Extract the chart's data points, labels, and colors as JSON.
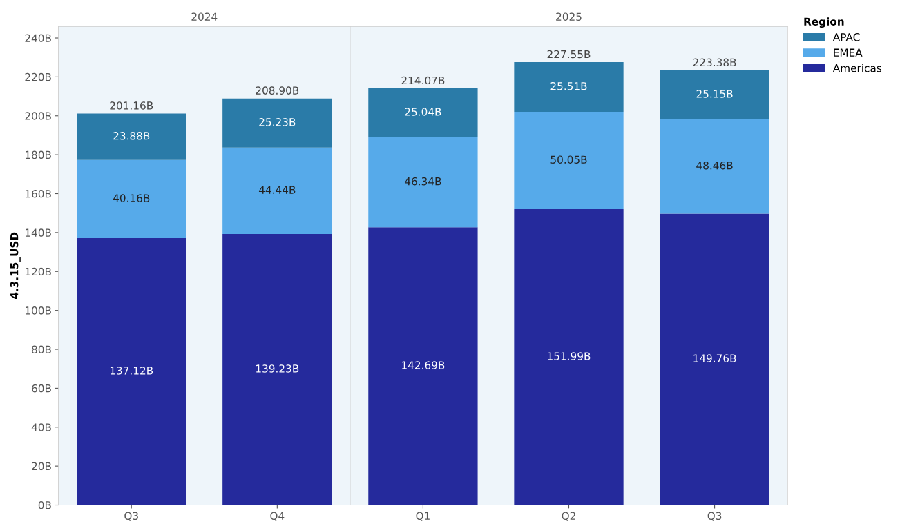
{
  "chart_data": [
    {
      "type": "bar",
      "title": "2024",
      "ylabel": "4.3.15_USD",
      "categories": [
        "Q3",
        "Q4"
      ],
      "stacked": true,
      "ylim": [
        0,
        246
      ],
      "legend": "right",
      "legend_title": "Region",
      "yticks": [
        {
          "value": 0,
          "label": "0B"
        },
        {
          "value": 20,
          "label": "20B"
        },
        {
          "value": 40,
          "label": "40B"
        },
        {
          "value": 60,
          "label": "60B"
        },
        {
          "value": 80,
          "label": "80B"
        },
        {
          "value": 100,
          "label": "100B"
        },
        {
          "value": 120,
          "label": "120B"
        },
        {
          "value": 140,
          "label": "140B"
        },
        {
          "value": 160,
          "label": "160B"
        },
        {
          "value": 180,
          "label": "180B"
        },
        {
          "value": 200,
          "label": "200B"
        },
        {
          "value": 220,
          "label": "220B"
        },
        {
          "value": 240,
          "label": "240B"
        }
      ],
      "series": [
        {
          "name": "Americas",
          "color": "#252a9c",
          "values": [
            137.12,
            139.23
          ],
          "value_labels": [
            "137.12B",
            "139.23B"
          ]
        },
        {
          "name": "EMEA",
          "color": "#56aaea",
          "values": [
            40.16,
            44.44
          ],
          "value_labels": [
            "40.16B",
            "44.44B"
          ]
        },
        {
          "name": "APAC",
          "color": "#2a7ba8",
          "values": [
            23.88,
            25.23
          ],
          "value_labels": [
            "23.88B",
            "25.23B"
          ]
        }
      ],
      "totals": [
        "201.16B",
        "208.90B"
      ]
    },
    {
      "type": "bar",
      "title": "2025",
      "categories": [
        "Q1",
        "Q2",
        "Q3"
      ],
      "stacked": true,
      "ylim": [
        0,
        246
      ],
      "tick_labels": "x",
      "series": [
        {
          "color": "#252a9c",
          "values": [
            142.69,
            151.99,
            149.76
          ],
          "value_labels": [
            "142.69B",
            "151.99B",
            "149.76B"
          ]
        },
        {
          "color": "#56aaea",
          "values": [
            46.34,
            50.05,
            48.46
          ],
          "value_labels": [
            "46.34B",
            "50.05B",
            "48.46B"
          ]
        },
        {
          "color": "#2a7ba8",
          "values": [
            25.04,
            25.51,
            25.15
          ],
          "value_labels": [
            "25.04B",
            "25.51B",
            "25.15B"
          ]
        }
      ],
      "totals": [
        "214.07B",
        "227.55B",
        "223.38B"
      ]
    }
  ]
}
